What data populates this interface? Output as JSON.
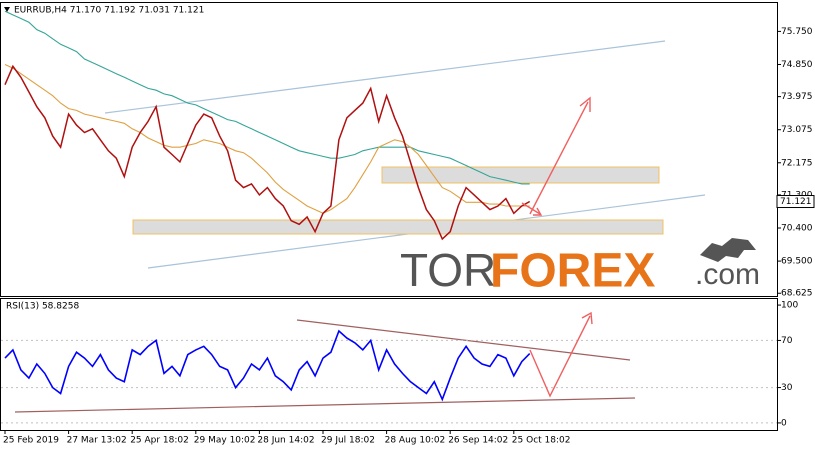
{
  "chart_data": [
    {
      "type": "line",
      "title": "EURRUB,H4  71.170 71.192 71.031 71.121",
      "current_price": 71.121,
      "ylim": [
        68.55,
        76.55
      ],
      "yticks": [
        {
          "value": 75.75,
          "label": "75.750"
        },
        {
          "value": 74.85,
          "label": "74.850"
        },
        73.975,
        73.075,
        72.175,
        {
          "value": 71.3,
          "label": "71.300"
        },
        {
          "value": 70.4,
          "label": "70.400"
        },
        {
          "value": 69.5,
          "label": "69.500"
        },
        68.625
      ],
      "series": [
        {
          "color": "#b01010",
          "values": [
            74.3,
            74.8,
            74.5,
            74.1,
            73.7,
            73.4,
            72.9,
            72.6,
            73.5,
            73.2,
            73.0,
            73.1,
            72.8,
            72.5,
            72.3,
            71.8,
            72.6,
            73.0,
            73.3,
            73.7,
            72.6,
            72.4,
            72.2,
            72.7,
            73.2,
            73.5,
            73.4,
            72.9,
            72.5,
            71.7,
            71.5,
            71.6,
            71.3,
            71.5,
            71.2,
            71.0,
            70.6,
            70.5,
            70.7,
            70.3,
            70.8,
            71.0,
            72.8,
            73.4,
            73.6,
            73.8,
            74.2,
            73.3,
            74.0,
            73.4,
            72.9,
            72.2,
            71.5,
            70.9,
            70.6,
            70.1,
            70.3,
            71.0,
            71.5,
            71.3,
            71.1,
            70.9,
            71.0,
            71.2,
            70.8,
            71.0,
            71.121
          ]
        },
        {
          "color": "#e0a040",
          "values": [
            74.85,
            74.75,
            74.6,
            74.45,
            74.3,
            74.15,
            74.0,
            73.8,
            73.65,
            73.6,
            73.5,
            73.45,
            73.4,
            73.35,
            73.3,
            73.25,
            73.1,
            73.0,
            72.85,
            72.75,
            72.65,
            72.6,
            72.6,
            72.65,
            72.7,
            72.8,
            72.75,
            72.7,
            72.6,
            72.5,
            72.45,
            72.3,
            72.1,
            71.9,
            71.65,
            71.45,
            71.3,
            71.15,
            71.0,
            70.9,
            70.8,
            70.9,
            71.05,
            71.2,
            71.5,
            71.85,
            72.2,
            72.6,
            72.7,
            72.8,
            72.75,
            72.6,
            72.4,
            72.1,
            71.8,
            71.5,
            71.4,
            71.25,
            71.1,
            71.1,
            71.1,
            71.05,
            71.05,
            71.0,
            71.0,
            71.0,
            71.0
          ]
        },
        {
          "color": "#35a598",
          "values": [
            76.3,
            76.2,
            76.1,
            76.0,
            75.8,
            75.7,
            75.55,
            75.4,
            75.3,
            75.2,
            75.0,
            74.9,
            74.8,
            74.7,
            74.6,
            74.5,
            74.4,
            74.3,
            74.2,
            74.15,
            74.05,
            74.0,
            73.9,
            73.8,
            73.75,
            73.65,
            73.55,
            73.45,
            73.35,
            73.3,
            73.2,
            73.1,
            73.0,
            72.9,
            72.8,
            72.7,
            72.6,
            72.5,
            72.45,
            72.4,
            72.35,
            72.3,
            72.3,
            72.35,
            72.4,
            72.5,
            72.55,
            72.6,
            72.6,
            72.6,
            72.6,
            72.6,
            72.5,
            72.45,
            72.4,
            72.35,
            72.3,
            72.2,
            72.1,
            72.0,
            71.9,
            71.8,
            71.75,
            71.7,
            71.65,
            71.6,
            71.6
          ]
        }
      ]
    },
    {
      "type": "line",
      "title": "RSI(13) 58.8258",
      "color": "#0000ff",
      "ylim": [
        -6,
        106
      ],
      "yticks": [
        0,
        30,
        70,
        100
      ],
      "categories": [
        "25 Feb 2019",
        null,
        null,
        null,
        null,
        null,
        null,
        null,
        "27 Mar 13:02",
        null,
        null,
        null,
        null,
        null,
        null,
        null,
        "25 Apr 18:02",
        null,
        null,
        null,
        null,
        null,
        null,
        null,
        "29 May 10:02",
        null,
        null,
        null,
        null,
        null,
        null,
        null,
        "28 Jun 14:02",
        null,
        null,
        null,
        null,
        null,
        null,
        null,
        "29 Jul 18:02",
        null,
        null,
        null,
        null,
        null,
        null,
        null,
        "28 Aug 10:02",
        null,
        null,
        null,
        null,
        null,
        null,
        null,
        "26 Sep 14:02",
        null,
        null,
        null,
        null,
        null,
        null,
        null,
        "25 Oct 18:02",
        null,
        null
      ],
      "values": [
        55,
        62,
        45,
        38,
        50,
        42,
        30,
        25,
        48,
        60,
        55,
        48,
        58,
        45,
        38,
        35,
        62,
        58,
        65,
        70,
        42,
        48,
        40,
        58,
        62,
        65,
        58,
        48,
        45,
        30,
        38,
        50,
        45,
        55,
        40,
        35,
        28,
        45,
        52,
        40,
        55,
        60,
        78,
        72,
        68,
        62,
        70,
        45,
        62,
        50,
        42,
        35,
        30,
        25,
        35,
        20,
        38,
        55,
        65,
        55,
        50,
        48,
        58,
        55,
        40,
        52,
        58.8258
      ]
    }
  ],
  "watermark": {
    "part1": "TOR",
    "part2": "FOREX",
    "part3": ".com"
  }
}
